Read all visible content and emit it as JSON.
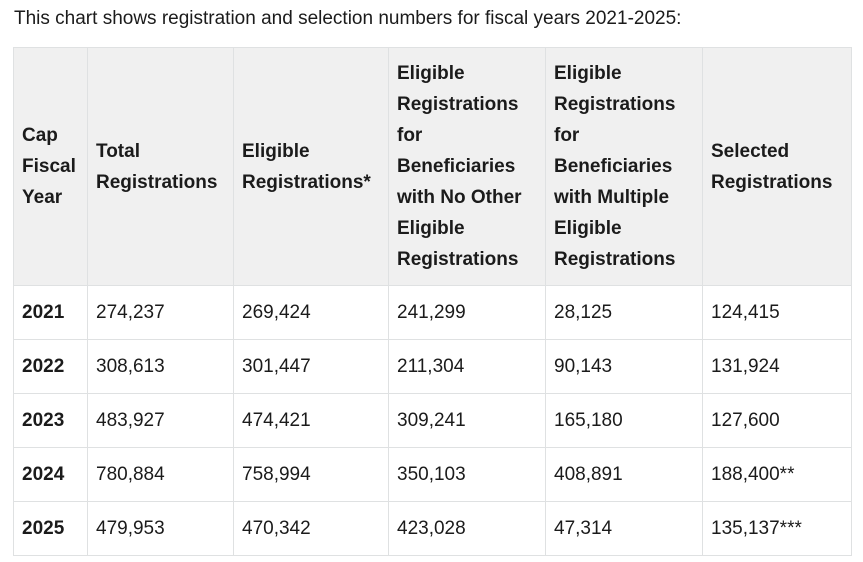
{
  "intro_text": "This chart shows registration and selection numbers for fiscal years 2021-2025:",
  "table": {
    "headers": [
      "Cap Fiscal Year",
      "Total Registrations",
      "Eligible Registrations*",
      "Eligible Registrations for Beneficiaries with No Other Eligible Registrations",
      "Eligible Registrations for Beneficiaries with Multiple Eligible Registrations",
      "Selected Registrations"
    ],
    "rows": [
      [
        "2021",
        "274,237",
        "269,424",
        "241,299",
        "28,125",
        "124,415"
      ],
      [
        "2022",
        "308,613",
        "301,447",
        "211,304",
        "90,143",
        "131,924"
      ],
      [
        "2023",
        "483,927",
        "474,421",
        "309,241",
        "165,180",
        "127,600"
      ],
      [
        "2024",
        "780,884",
        "758,994",
        "350,103",
        "408,891",
        "188,400**"
      ],
      [
        "2025",
        "479,953",
        "470,342",
        "423,028",
        "47,314",
        "135,137***"
      ]
    ]
  }
}
